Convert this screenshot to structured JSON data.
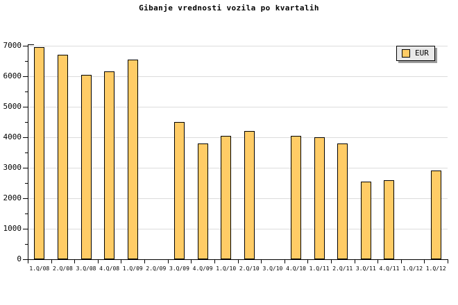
{
  "chart_data": {
    "type": "bar",
    "title": "Gibanje vrednosti vozila po kvartalih",
    "categories": [
      "1.Q/08",
      "2.Q/08",
      "3.Q/08",
      "4.Q/08",
      "1.Q/09",
      "2.Q/09",
      "3.Q/09",
      "4.Q/09",
      "1.Q/10",
      "2.Q/10",
      "3.Q/10",
      "4.Q/10",
      "1.Q/11",
      "2.Q/11",
      "3.Q/11",
      "4.Q/11",
      "1.Q/12",
      "1.Q/12"
    ],
    "series": [
      {
        "name": "EUR",
        "values": [
          6950,
          6700,
          6050,
          6150,
          6550,
          null,
          4500,
          3800,
          4050,
          4200,
          null,
          4050,
          4000,
          3800,
          2550,
          2600,
          null,
          2900
        ]
      }
    ],
    "xlabel": "",
    "ylabel": "",
    "ylim": [
      0,
      7000
    ],
    "ytick_interval": 1000,
    "y_minor_tick_interval": 500,
    "grid": "horizontal",
    "legend_position": "top-right",
    "colors": {
      "bar_fill": "#FFCC66",
      "bar_border": "#000000",
      "gridline": "#DCDCDC",
      "axis": "#000000",
      "legend_bg": "#E9E9E9",
      "legend_shadow": "#9C9C9C",
      "background": "#FFFFFF",
      "text": "#000000"
    }
  }
}
